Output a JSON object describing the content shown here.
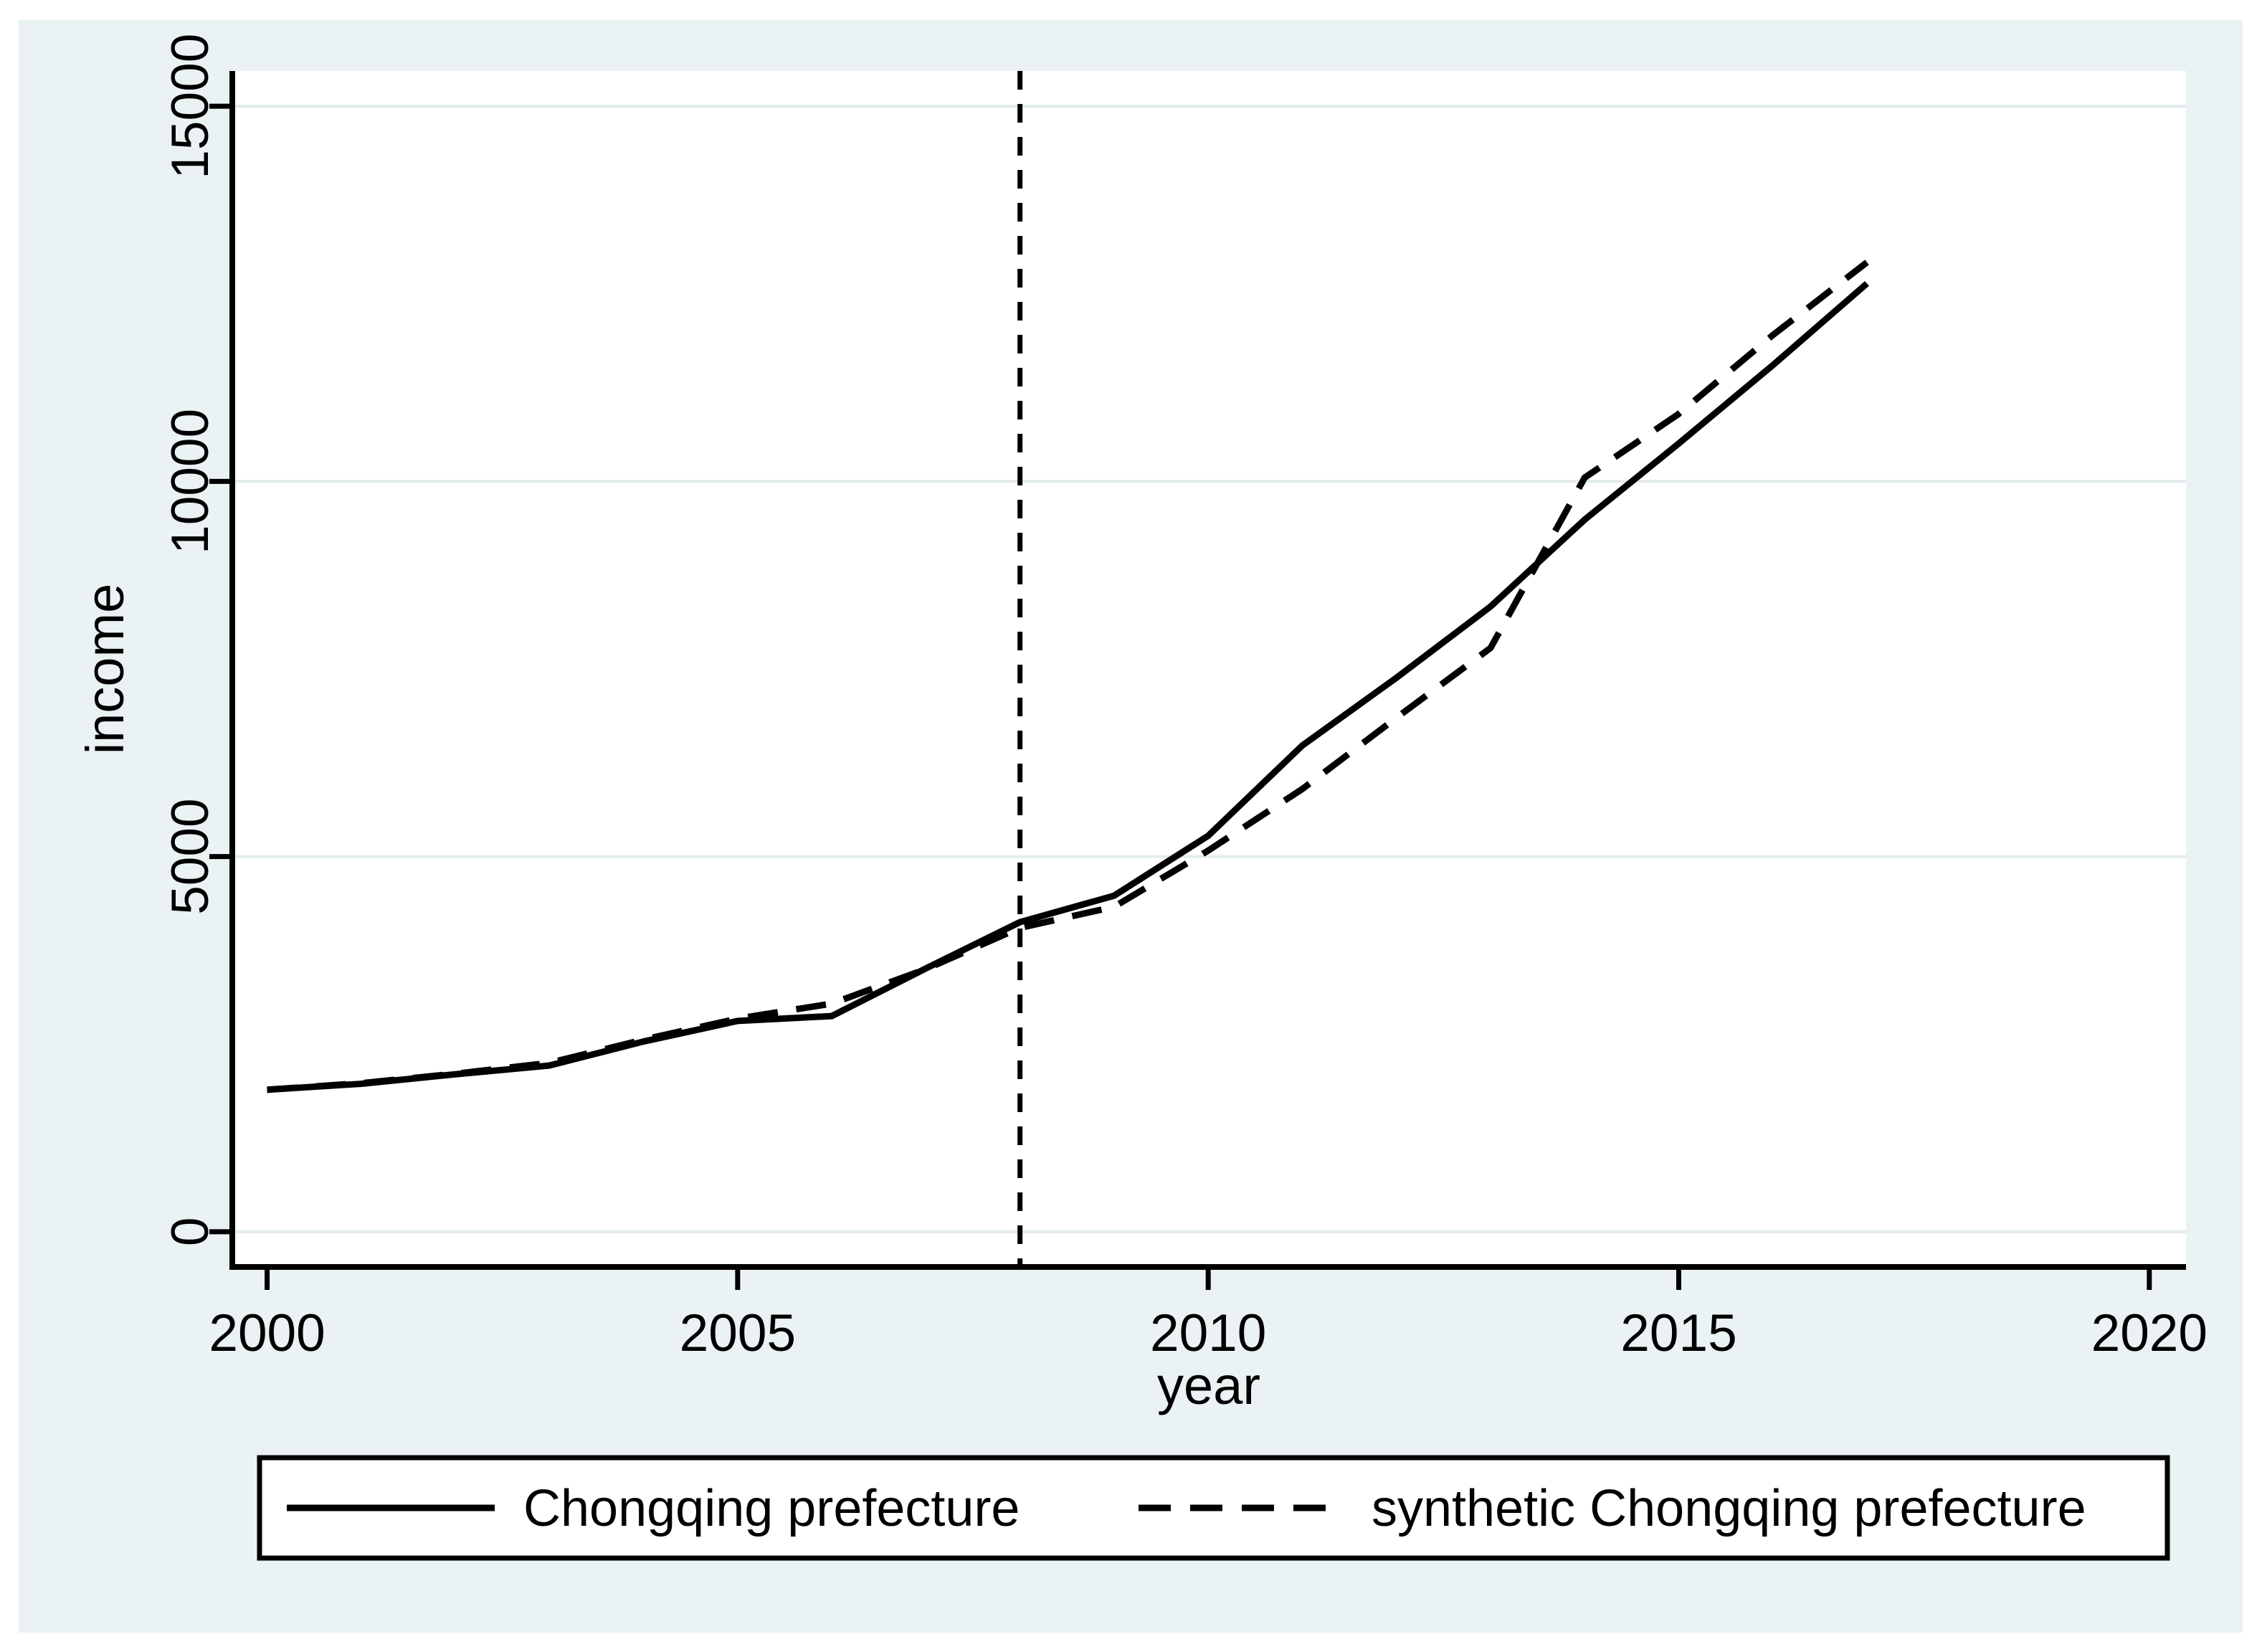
{
  "figure": {
    "page_background": "#ffffff",
    "canvas_color": "#eaf2f3",
    "plot_background": "#ffffff",
    "grid_color": "#e2ebed",
    "axis_color": "#000000",
    "line_color": "#000000",
    "text_color": "#000000"
  },
  "chart_data": {
    "type": "line",
    "title": "",
    "xlabel": "year",
    "ylabel": "income",
    "x": [
      2000,
      2001,
      2002,
      2003,
      2004,
      2005,
      2006,
      2007,
      2008,
      2009,
      2010,
      2011,
      2012,
      2013,
      2014,
      2015,
      2016,
      2017
    ],
    "series": [
      {
        "name": "Chongqing prefecture",
        "style": "solid",
        "color": "#000000",
        "values": [
          1892,
          1971,
          2098,
          2215,
          2535,
          2809,
          2874,
          3509,
          4126,
          4478,
          5277,
          6480,
          7383,
          8332,
          9490,
          10505,
          11549,
          12638
        ]
      },
      {
        "name": "synthetic Chongqing prefecture",
        "style": "dashed",
        "color": "#000000",
        "values": [
          1892,
          1980,
          2105,
          2250,
          2560,
          2840,
          3040,
          3500,
          4050,
          4330,
          5080,
          5900,
          6850,
          7780,
          10050,
          10900,
          11950,
          12920
        ]
      }
    ],
    "xticks": [
      2000,
      2005,
      2010,
      2015,
      2020
    ],
    "yticks": [
      0,
      5000,
      10000,
      15000
    ],
    "xlim": [
      1999.63,
      2020.39
    ],
    "ylim": [
      -470,
      15470
    ],
    "vline_x": 2008,
    "grid": true,
    "legend_position": "bottom"
  }
}
